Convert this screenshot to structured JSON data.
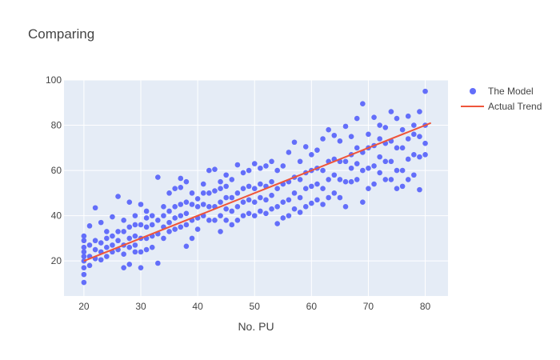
{
  "chart_data": {
    "type": "scatter",
    "title": "Comparing",
    "xlabel": "No. PU",
    "ylabel": "",
    "xlim": [
      16.5,
      84
    ],
    "ylim": [
      4.5,
      100
    ],
    "xticks": [
      20,
      30,
      40,
      50,
      60,
      70,
      80
    ],
    "yticks": [
      20,
      40,
      60,
      80,
      100
    ],
    "grid": true,
    "legend_position": "top-right",
    "colors": {
      "scatter": "#636efa",
      "trend": "#ef553b",
      "plot_bg": "#e5ecf6",
      "grid": "#ffffff"
    },
    "series": [
      {
        "name": "The Model",
        "mode": "markers",
        "x": [
          20,
          20,
          20,
          20,
          20,
          20,
          20,
          20,
          20,
          21,
          21,
          21,
          21,
          22,
          22,
          22,
          22,
          23,
          23,
          23,
          23,
          24,
          24,
          24,
          24,
          25,
          25,
          25,
          25,
          26,
          26,
          26,
          26,
          27,
          27,
          27,
          27,
          27,
          28,
          28,
          28,
          28,
          28,
          29,
          29,
          29,
          29,
          29,
          30,
          30,
          30,
          30,
          30,
          31,
          31,
          31,
          31,
          31,
          32,
          32,
          32,
          32,
          33,
          33,
          33,
          33,
          34,
          34,
          34,
          34,
          35,
          35,
          35,
          35,
          36,
          36,
          36,
          36,
          37,
          37,
          37,
          37,
          37,
          38,
          38,
          38,
          38,
          38,
          39,
          39,
          39,
          39,
          40,
          40,
          40,
          40,
          41,
          41,
          41,
          41,
          42,
          42,
          42,
          42,
          43,
          43,
          43,
          43,
          44,
          44,
          44,
          44,
          44,
          45,
          45,
          45,
          45,
          45,
          46,
          46,
          46,
          46,
          47,
          47,
          47,
          47,
          48,
          48,
          48,
          48,
          49,
          49,
          49,
          49,
          50,
          50,
          50,
          50,
          51,
          51,
          51,
          51,
          52,
          52,
          52,
          52,
          53,
          53,
          53,
          53,
          54,
          54,
          54,
          54,
          55,
          55,
          55,
          55,
          56,
          56,
          56,
          56,
          57,
          57,
          57,
          57,
          58,
          58,
          58,
          58,
          59,
          59,
          59,
          59,
          60,
          60,
          60,
          60,
          61,
          61,
          61,
          61,
          62,
          62,
          62,
          62,
          63,
          63,
          63,
          63,
          64,
          64,
          64,
          64,
          65,
          65,
          65,
          65,
          66,
          66,
          66,
          66,
          67,
          67,
          67,
          67,
          68,
          68,
          68,
          68,
          69,
          69,
          69,
          69,
          70,
          70,
          70,
          70,
          71,
          71,
          71,
          71,
          72,
          72,
          72,
          72,
          73,
          73,
          73,
          73,
          74,
          74,
          74,
          74,
          75,
          75,
          75,
          75,
          76,
          76,
          76,
          76,
          77,
          77,
          77,
          77,
          78,
          78,
          78,
          78,
          79,
          79,
          79,
          79,
          80,
          80,
          80,
          80
        ],
        "y": [
          10.5,
          14,
          17,
          20,
          22,
          24,
          26,
          29,
          31,
          18,
          22,
          27,
          35.5,
          21,
          25,
          29,
          43.5,
          20.5,
          24,
          28,
          37,
          22,
          26,
          30,
          33,
          24,
          27,
          31,
          39.5,
          25,
          29,
          33,
          48.5,
          17,
          23,
          27,
          33,
          38,
          18.5,
          26,
          30,
          35,
          46,
          24,
          27,
          31,
          36,
          40,
          17,
          24,
          30,
          36,
          45,
          25,
          30,
          35,
          39,
          42,
          26,
          31,
          36,
          40,
          19,
          32,
          38,
          57,
          30,
          35,
          40,
          44,
          33,
          37,
          42,
          50,
          34,
          39,
          44,
          52,
          35,
          40,
          45,
          52.5,
          56.5,
          26.5,
          36,
          41,
          46,
          55,
          30,
          38,
          45,
          50,
          34,
          39,
          44,
          47.5,
          40,
          45,
          50,
          54,
          38,
          44,
          50,
          60,
          38,
          44,
          51,
          60.5,
          33,
          40,
          46,
          52,
          55,
          38,
          43,
          48,
          53,
          58,
          36,
          42,
          48,
          56,
          38,
          44,
          50,
          62.5,
          40,
          46,
          52,
          59,
          41,
          47,
          53,
          60,
          40,
          46,
          52,
          63,
          42,
          48,
          54,
          61,
          41,
          47,
          53,
          62,
          43,
          49,
          55,
          64,
          36.5,
          44,
          52,
          60,
          39,
          46,
          54,
          62,
          40,
          47,
          55,
          68,
          43,
          50,
          57,
          72.5,
          41.5,
          48,
          56,
          64,
          44,
          52,
          59,
          70.5,
          45.5,
          53,
          60,
          67,
          47,
          54,
          61,
          69,
          45,
          52,
          60,
          74,
          48,
          56,
          64,
          78,
          50,
          58,
          65,
          75.5,
          48,
          56,
          64,
          73,
          44,
          55,
          64,
          79.5,
          55,
          61,
          67,
          75,
          56,
          63,
          70,
          83,
          46,
          60,
          68,
          89.5,
          52,
          61,
          70,
          76,
          54,
          62,
          71,
          83.5,
          59,
          66,
          74,
          80,
          56,
          64,
          72,
          79,
          56,
          64,
          73,
          86,
          52,
          60,
          70,
          83,
          53,
          60,
          70,
          78,
          56,
          65,
          74,
          84,
          58,
          67,
          76,
          80,
          51.5,
          66,
          75,
          86,
          67,
          72,
          80,
          95
        ]
      },
      {
        "name": "Actual Trend",
        "mode": "lines",
        "x": [
          20,
          81
        ],
        "y": [
          20,
          81
        ]
      }
    ]
  }
}
